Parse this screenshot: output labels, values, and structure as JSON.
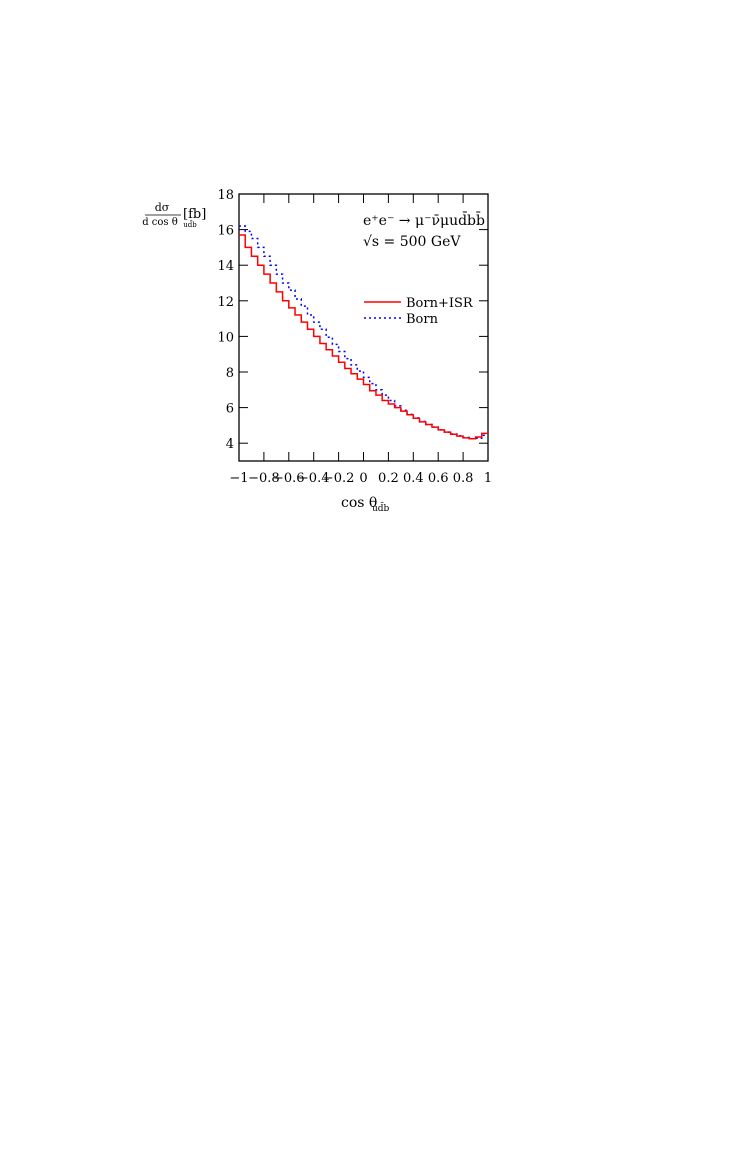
{
  "chart_data": {
    "type": "line",
    "step": true,
    "xlabel": "cos θ",
    "xlabel_sub": "ud̄b",
    "ylabel_num": "dσ",
    "ylabel_den": "d cos θ",
    "ylabel_den_sub": "ud̄b",
    "ylabel_unit": "[fb]",
    "annotation_process": "e⁺e⁻ → μ⁻ν̄μud̄bb̄",
    "annotation_energy": "√s = 500 GeV",
    "xlim": [
      -1,
      1
    ],
    "ylim": [
      3,
      18
    ],
    "x_ticks": [
      "−1",
      "−0.8",
      "−0.6",
      "−0.4",
      "−0.2",
      "0",
      "0.2",
      "0.4",
      "0.6",
      "0.8",
      "1"
    ],
    "x_tick_values": [
      -1,
      -0.8,
      -0.6,
      -0.4,
      -0.2,
      0,
      0.2,
      0.4,
      0.6,
      0.8,
      1
    ],
    "y_ticks": [
      "4",
      "6",
      "8",
      "10",
      "12",
      "14",
      "16",
      "18"
    ],
    "y_tick_values": [
      4,
      6,
      8,
      10,
      12,
      14,
      16,
      18
    ],
    "legend_position": "right-middle",
    "bin_edges": [
      -1,
      -0.95,
      -0.9,
      -0.85,
      -0.8,
      -0.75,
      -0.7,
      -0.65,
      -0.6,
      -0.55,
      -0.5,
      -0.45,
      -0.4,
      -0.35,
      -0.3,
      -0.25,
      -0.2,
      -0.15,
      -0.1,
      -0.05,
      0,
      0.05,
      0.1,
      0.15,
      0.2,
      0.25,
      0.3,
      0.35,
      0.4,
      0.45,
      0.5,
      0.55,
      0.6,
      0.65,
      0.7,
      0.75,
      0.8,
      0.85,
      0.9,
      0.95,
      1
    ],
    "series": [
      {
        "name": "Born+ISR",
        "color": "#ff0000",
        "style": "solid",
        "values": [
          15.7,
          15.0,
          14.5,
          14.0,
          13.5,
          13.0,
          12.5,
          12.0,
          11.6,
          11.2,
          10.8,
          10.4,
          10.0,
          9.6,
          9.25,
          8.9,
          8.55,
          8.2,
          7.9,
          7.6,
          7.3,
          6.95,
          6.7,
          6.4,
          6.2,
          6.0,
          5.8,
          5.6,
          5.4,
          5.2,
          5.05,
          4.9,
          4.75,
          4.62,
          4.5,
          4.4,
          4.3,
          4.25,
          4.35,
          4.55
        ]
      },
      {
        "name": "Born",
        "color": "#0000ff",
        "style": "dotted",
        "values": [
          16.2,
          15.9,
          15.5,
          15.0,
          14.5,
          14.0,
          13.5,
          13.0,
          12.6,
          12.1,
          11.7,
          11.2,
          10.8,
          10.4,
          9.95,
          9.55,
          9.15,
          8.75,
          8.4,
          8.05,
          7.7,
          7.35,
          7.0,
          6.7,
          6.4,
          6.1,
          5.85,
          5.62,
          5.42,
          5.22,
          5.05,
          4.9,
          4.75,
          4.62,
          4.52,
          4.42,
          4.32,
          4.25,
          4.28,
          4.45
        ]
      }
    ]
  }
}
